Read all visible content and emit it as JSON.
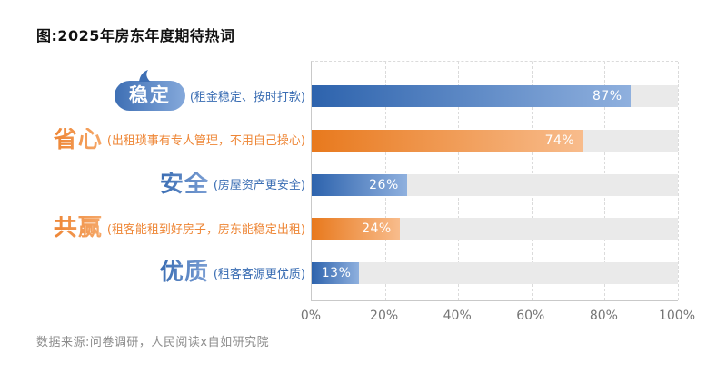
{
  "title": "图:2025年房东年度期待热词",
  "source": "数据来源:问卷调研，人民阅读x自如研究院",
  "chart_data": {
    "type": "bar",
    "orientation": "horizontal",
    "title": "图:2025年房东年度期待热词",
    "categories": [
      "稳定",
      "省心",
      "安全",
      "共赢",
      "优质"
    ],
    "descriptions": [
      "(租金稳定、按时打款)",
      "(出租琐事有专人管理，不用自己操心)",
      "(房屋资产更安全)",
      "(租客能租到好房子，房东能稳定出租)",
      "(租客客源更优质)"
    ],
    "values": [
      87,
      74,
      26,
      24,
      13
    ],
    "value_labels": [
      "87%",
      "74%",
      "26%",
      "24%",
      "13%"
    ],
    "series_colors": [
      "blue",
      "orange",
      "blue",
      "orange",
      "blue"
    ],
    "xlim": [
      0,
      100
    ],
    "x_ticks": [
      "0%",
      "20%",
      "40%",
      "60%",
      "80%",
      "100%"
    ],
    "x_tick_values": [
      0,
      20,
      40,
      60,
      80,
      100
    ],
    "grid": "vertical-dashed",
    "legend": "none",
    "highlight_first_category": "speech-bubble",
    "palette": {
      "blue_dark": "#2D63AD",
      "blue_light": "#8FB0DE",
      "orange_dark": "#E8791D",
      "orange_light": "#F8BC8C",
      "text_blue": "#3A6DB3",
      "text_blue_light": "#7C9FD4",
      "text_orange": "#EE8636",
      "text_orange_light": "#F5A869",
      "bubble_from": "#3E6FB4",
      "bubble_to": "#85A9DB",
      "track": "#EAEAEA",
      "grid": "#DBDBDB",
      "axis": "#C9C9C9",
      "tick_text": "#757575",
      "title_text": "#111111",
      "source_text": "#8C8C8C"
    }
  }
}
